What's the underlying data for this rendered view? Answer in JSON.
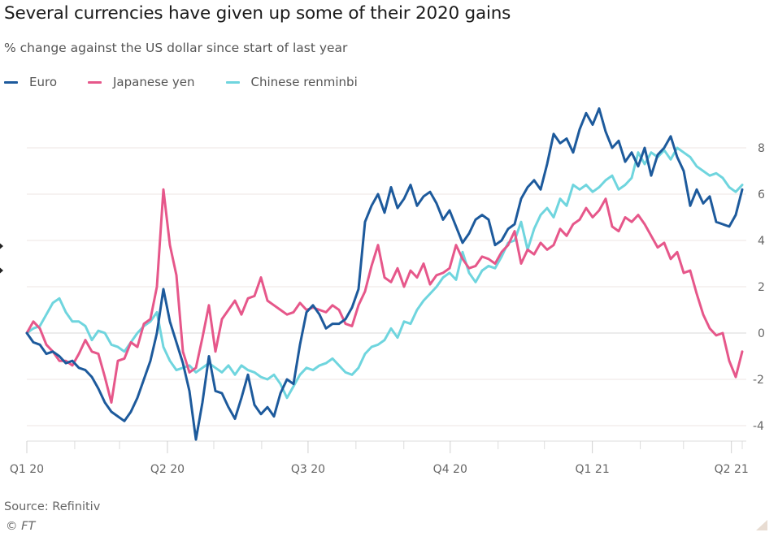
{
  "header": {
    "title": "Several currencies have given up some of their 2020 gains",
    "subtitle": "% change against the US dollar since start of last year"
  },
  "legend": [
    {
      "label": "Euro",
      "color": "#1d5a9c"
    },
    {
      "label": "Japanese yen",
      "color": "#e6578a"
    },
    {
      "label": "Chinese renminbi",
      "color": "#6fd5de"
    }
  ],
  "footer": {
    "source": "Source: Refinitiv",
    "copyright": "© FT"
  },
  "chart_data": {
    "type": "line",
    "title": "Several currencies have given up some of their 2020 gains",
    "subtitle": "% change against the US dollar since start of last year",
    "xlabel": "",
    "ylabel": "% change against the US dollar",
    "x_range": [
      "2020-01-01",
      "2021-04-08"
    ],
    "x_ticks": [
      "Q1 20",
      "Q2 20",
      "Q3 20",
      "Q4 20",
      "Q1 21",
      "Q2 21"
    ],
    "y_ticks": [
      8,
      6,
      4,
      2,
      0,
      -2,
      -4
    ],
    "ylim": [
      -4.6,
      10
    ],
    "grid": true,
    "legend_position": "top-left",
    "y_axis_side": "right",
    "series": [
      {
        "name": "Euro",
        "color": "#1d5a9c",
        "values": [
          0,
          -0.4,
          -0.5,
          -0.9,
          -0.8,
          -1.0,
          -1.3,
          -1.2,
          -1.5,
          -1.6,
          -1.9,
          -2.4,
          -3.0,
          -3.4,
          -3.6,
          -3.8,
          -3.4,
          -2.8,
          -2.0,
          -1.2,
          0.0,
          1.9,
          0.5,
          -0.4,
          -1.3,
          -2.5,
          -4.6,
          -3.0,
          -1.0,
          -2.5,
          -2.6,
          -3.2,
          -3.7,
          -2.8,
          -1.8,
          -3.1,
          -3.5,
          -3.2,
          -3.6,
          -2.6,
          -2.0,
          -2.2,
          -0.5,
          0.9,
          1.2,
          0.8,
          0.2,
          0.4,
          0.4,
          0.6,
          1.1,
          1.9,
          4.8,
          5.5,
          6.0,
          5.2,
          6.3,
          5.4,
          5.8,
          6.4,
          5.5,
          5.9,
          6.1,
          5.6,
          4.9,
          5.3,
          4.6,
          3.9,
          4.3,
          4.9,
          5.1,
          4.9,
          3.8,
          4.0,
          4.5,
          4.7,
          5.8,
          6.3,
          6.6,
          6.2,
          7.3,
          8.6,
          8.2,
          8.4,
          7.8,
          8.8,
          9.5,
          9.0,
          9.7,
          8.7,
          8.0,
          8.3,
          7.4,
          7.8,
          7.2,
          8.0,
          6.8,
          7.7,
          8.0,
          8.5,
          7.6,
          7.0,
          5.5,
          6.2,
          5.6,
          5.9,
          4.8,
          4.7,
          4.6,
          5.1,
          6.2
        ]
      },
      {
        "name": "Japanese yen",
        "color": "#e6578a",
        "values": [
          0,
          0.5,
          0.2,
          -0.5,
          -0.8,
          -1.2,
          -1.2,
          -1.4,
          -0.9,
          -0.3,
          -0.8,
          -0.9,
          -1.9,
          -3.0,
          -1.2,
          -1.1,
          -0.4,
          -0.6,
          0.4,
          0.6,
          2.0,
          6.2,
          3.8,
          2.5,
          -0.8,
          -1.7,
          -1.5,
          -0.2,
          1.2,
          -0.8,
          0.6,
          1.0,
          1.4,
          0.8,
          1.5,
          1.6,
          2.4,
          1.4,
          1.2,
          1.0,
          0.8,
          0.9,
          1.3,
          1.0,
          1.1,
          1.0,
          0.9,
          1.2,
          1.0,
          0.4,
          0.3,
          1.2,
          1.8,
          2.9,
          3.8,
          2.4,
          2.2,
          2.8,
          2.0,
          2.7,
          2.4,
          3.0,
          2.1,
          2.5,
          2.6,
          2.8,
          3.8,
          3.2,
          2.8,
          2.9,
          3.3,
          3.2,
          3.0,
          3.5,
          3.8,
          4.4,
          3.0,
          3.6,
          3.4,
          3.9,
          3.6,
          3.8,
          4.5,
          4.2,
          4.7,
          4.9,
          5.4,
          5.0,
          5.3,
          5.8,
          4.6,
          4.4,
          5.0,
          4.8,
          5.1,
          4.7,
          4.2,
          3.7,
          3.9,
          3.2,
          3.5,
          2.6,
          2.7,
          1.7,
          0.8,
          0.2,
          -0.1,
          0.0,
          -1.2,
          -1.9,
          -0.8
        ]
      },
      {
        "name": "Chinese renminbi",
        "color": "#6fd5de",
        "values": [
          0,
          0.2,
          0.3,
          0.8,
          1.3,
          1.5,
          0.9,
          0.5,
          0.5,
          0.3,
          -0.3,
          0.1,
          0.0,
          -0.5,
          -0.6,
          -0.8,
          -0.4,
          0.0,
          0.3,
          0.5,
          0.9,
          -0.6,
          -1.2,
          -1.6,
          -1.5,
          -1.4,
          -1.7,
          -1.5,
          -1.3,
          -1.5,
          -1.7,
          -1.4,
          -1.8,
          -1.4,
          -1.6,
          -1.7,
          -1.9,
          -2.0,
          -1.8,
          -2.2,
          -2.8,
          -2.3,
          -1.8,
          -1.5,
          -1.6,
          -1.4,
          -1.3,
          -1.1,
          -1.4,
          -1.7,
          -1.8,
          -1.5,
          -0.9,
          -0.6,
          -0.5,
          -0.3,
          0.2,
          -0.2,
          0.5,
          0.4,
          1.0,
          1.4,
          1.7,
          2.0,
          2.4,
          2.6,
          2.3,
          3.5,
          2.6,
          2.2,
          2.7,
          2.9,
          2.8,
          3.3,
          3.9,
          4.0,
          4.8,
          3.6,
          4.5,
          5.1,
          5.4,
          5.0,
          5.8,
          5.5,
          6.4,
          6.2,
          6.4,
          6.1,
          6.3,
          6.6,
          6.8,
          6.2,
          6.4,
          6.7,
          7.8,
          7.3,
          7.8,
          7.6,
          7.9,
          7.5,
          8.0,
          7.8,
          7.6,
          7.2,
          7.0,
          6.8,
          6.9,
          6.7,
          6.3,
          6.1,
          6.4
        ]
      }
    ]
  }
}
